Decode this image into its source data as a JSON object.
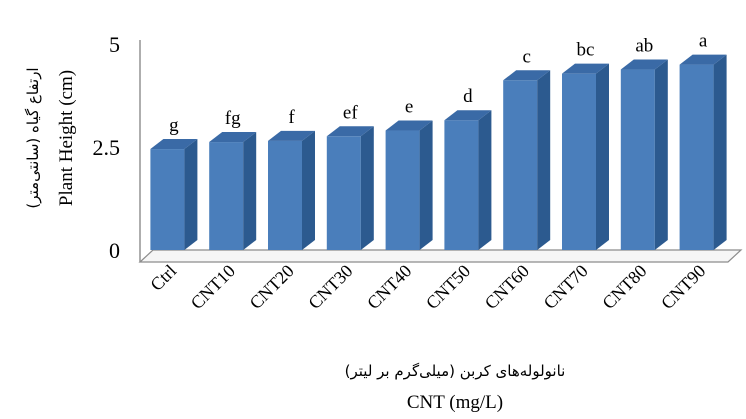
{
  "chart_data": {
    "type": "bar",
    "categories": [
      "Ctrl",
      "CNT10",
      "CNT20",
      "CNT30",
      "CNT40",
      "CNT50",
      "CNT60",
      "CNT70",
      "CNT80",
      "CNT90"
    ],
    "values": [
      2.45,
      2.62,
      2.65,
      2.76,
      2.9,
      3.15,
      4.12,
      4.28,
      4.38,
      4.5
    ],
    "significance_letters": [
      "g",
      "fg",
      "f",
      "ef",
      "e",
      "d",
      "c",
      "bc",
      "ab",
      "a"
    ],
    "ylim": [
      0,
      5
    ],
    "yticks": [
      "0",
      "2.5",
      "5"
    ],
    "xlabel": "CNT (mg/L)",
    "xlabel_fa": "نانولوله‌های کربن (میلی‌گرم بر لیتر)",
    "ylabel": "Plant Height (cm)",
    "ylabel_fa": "ارتفاع گیاه (سانتی‌متر)",
    "grid": false,
    "legend": "none",
    "colors": {
      "bar_front": "#4a7ebb",
      "bar_side": "#2c5a8f",
      "bar_top": "#3a6aa6",
      "axis": "#8c8c8c"
    }
  }
}
